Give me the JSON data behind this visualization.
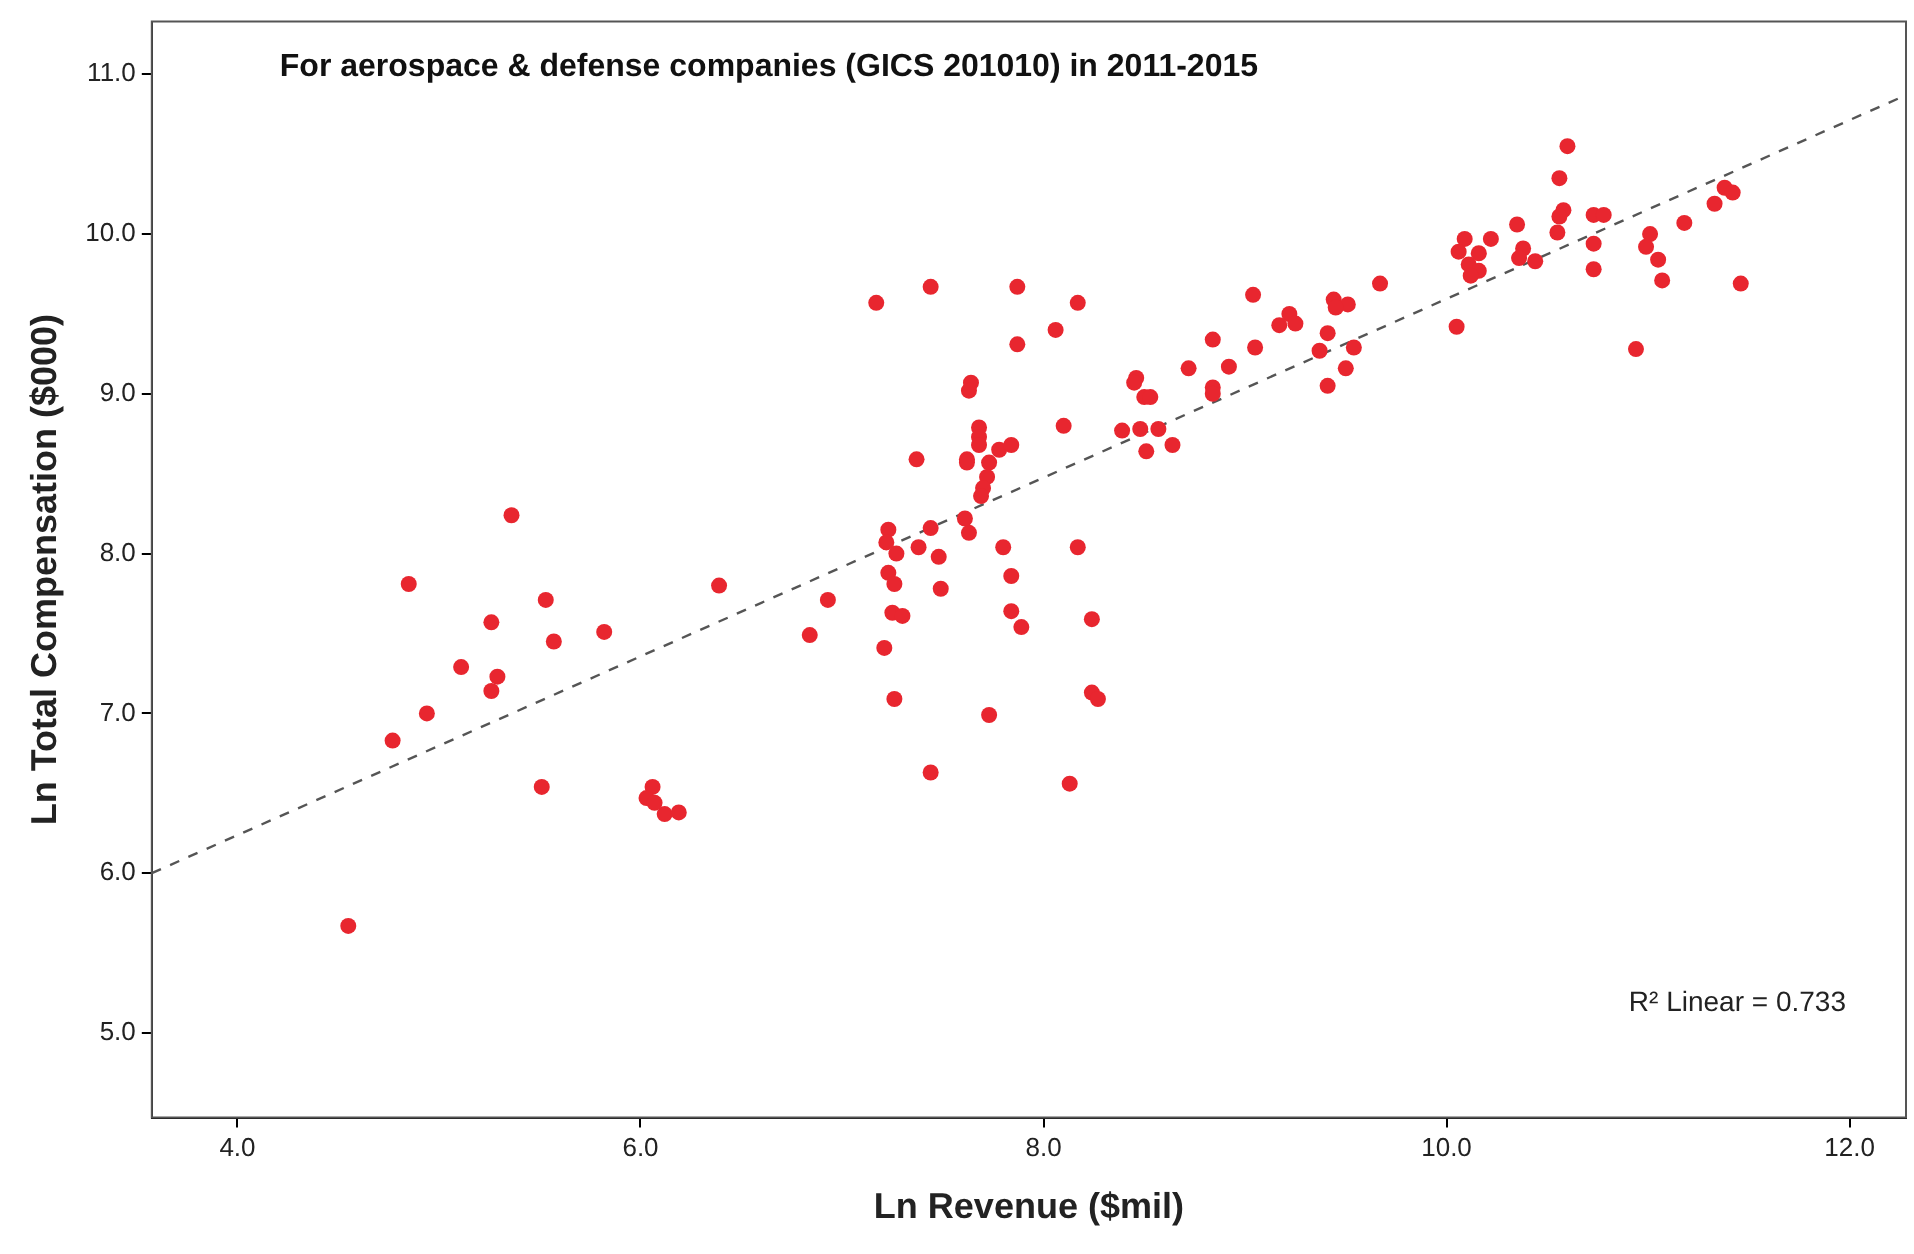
{
  "chart_data": {
    "type": "scatter",
    "title": "For aerospace & defense companies (GICS 201010) in 2011-2015",
    "xlabel": "Ln Revenue ($mil)",
    "ylabel": "Ln Total Compensation ($000)",
    "annotations": [
      "R² Linear = 0.733"
    ],
    "xlim": [
      3.575,
      12.28
    ],
    "ylim": [
      4.47,
      11.33
    ],
    "xticks": [
      {
        "value": 4,
        "label": "4.0"
      },
      {
        "value": 6,
        "label": "6.0"
      },
      {
        "value": 8,
        "label": "8.0"
      },
      {
        "value": 10,
        "label": "10.0"
      },
      {
        "value": 12,
        "label": "12.0"
      }
    ],
    "yticks": [
      {
        "value": 5,
        "label": "5.0"
      },
      {
        "value": 6,
        "label": "6.0"
      },
      {
        "value": 7,
        "label": "7.0"
      },
      {
        "value": 8,
        "label": "8.0"
      },
      {
        "value": 9,
        "label": "9.0"
      },
      {
        "value": 10,
        "label": "10.0"
      },
      {
        "value": 11,
        "label": "11.0"
      }
    ],
    "grid": false,
    "legend": false,
    "marker": "circle",
    "series": [
      {
        "color": "#e8262f",
        "x": [
          5.36,
          4.85,
          5.53,
          5.26,
          5.57,
          5.82,
          6.39,
          6.84,
          5.11,
          5.29,
          5.26,
          4.94,
          4.77,
          5.51,
          6.06,
          6.03,
          6.12,
          6.19,
          6.07,
          4.55,
          7.17,
          7.44,
          7.87,
          8.17,
          8.06,
          7.87,
          7.64,
          7.63,
          8.46,
          8.45,
          8.5,
          8.53,
          8.72,
          8.84,
          8.84,
          8.84,
          8.1,
          7.68,
          7.68,
          7.68,
          7.62,
          7.62,
          7.73,
          7.78,
          7.84,
          7.72,
          7.7,
          7.69,
          7.37,
          8.39,
          8.48,
          8.57,
          8.51,
          8.64,
          7.23,
          7.44,
          7.61,
          7.63,
          7.22,
          7.38,
          7.8,
          8.17,
          7.27,
          7.48,
          7.23,
          7.26,
          7.49,
          7.84,
          6.93,
          7.25,
          7.3,
          7.84,
          7.89,
          8.24,
          7.21,
          7.26,
          8.24,
          8.27,
          7.73,
          7.44,
          8.13,
          9.04,
          9.67,
          9.44,
          9.51,
          9.45,
          9.22,
          9.17,
          9.25,
          9.41,
          9.05,
          9.37,
          9.54,
          8.92,
          9.5,
          9.41,
          10.05,
          10.09,
          10.22,
          10.06,
          10.16,
          10.11,
          10.16,
          10.12,
          10.6,
          10.56,
          10.58,
          10.56,
          10.55,
          10.73,
          10.78,
          10.73,
          10.73,
          10.35,
          10.38,
          10.36,
          10.44,
          11.01,
          10.99,
          11.05,
          11.07,
          11.18,
          11.33,
          11.38,
          11.42,
          11.46,
          10.94
        ],
        "values": [
          8.24,
          7.81,
          7.71,
          7.57,
          7.45,
          7.51,
          7.8,
          7.49,
          7.29,
          7.23,
          7.14,
          7.0,
          6.83,
          6.54,
          6.54,
          6.47,
          6.37,
          6.38,
          6.44,
          5.67,
          9.57,
          9.67,
          9.67,
          9.57,
          9.4,
          9.31,
          9.07,
          9.02,
          9.1,
          9.07,
          8.98,
          8.98,
          9.16,
          9.34,
          9.04,
          9.0,
          8.8,
          8.79,
          8.73,
          8.68,
          8.59,
          8.57,
          8.57,
          8.65,
          8.68,
          8.48,
          8.41,
          8.36,
          8.59,
          8.77,
          8.78,
          8.78,
          8.64,
          8.68,
          8.15,
          8.16,
          8.22,
          8.13,
          8.07,
          8.04,
          8.04,
          8.04,
          8.0,
          7.98,
          7.88,
          7.81,
          7.78,
          7.86,
          7.71,
          7.63,
          7.61,
          7.64,
          7.54,
          7.59,
          7.41,
          7.09,
          7.13,
          7.09,
          6.99,
          6.63,
          6.56,
          9.62,
          9.69,
          9.59,
          9.56,
          9.54,
          9.5,
          9.43,
          9.44,
          9.38,
          9.29,
          9.27,
          9.29,
          9.17,
          9.16,
          9.05,
          9.42,
          9.97,
          9.97,
          9.89,
          9.88,
          9.81,
          9.77,
          9.74,
          10.55,
          10.35,
          10.15,
          10.11,
          10.01,
          10.12,
          10.12,
          9.94,
          9.78,
          10.06,
          9.91,
          9.85,
          9.83,
          10.0,
          9.92,
          9.84,
          9.71,
          10.07,
          10.19,
          10.29,
          10.26,
          9.69,
          9.28
        ]
      },
      {
        "type": "line",
        "color": "#555555",
        "line_style": "dashed",
        "marker": "none",
        "x": [
          3.575,
          12.28
        ],
        "values": [
          6.0,
          10.87
        ]
      }
    ]
  }
}
